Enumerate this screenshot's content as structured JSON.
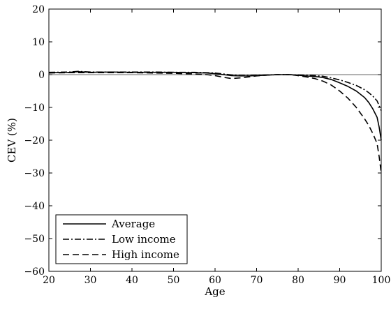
{
  "chart_data": {
    "type": "line",
    "title": "",
    "xlabel": "Age",
    "ylabel": "CEV (%)",
    "xlim": [
      20,
      100
    ],
    "ylim": [
      -60,
      20
    ],
    "xticks": [
      20,
      30,
      40,
      50,
      60,
      70,
      80,
      90,
      100
    ],
    "yticks": [
      20,
      10,
      0,
      -10,
      -20,
      -30,
      -40,
      -50,
      -60
    ],
    "reference_line_y": 0,
    "legend_position": "bottom-left",
    "series": [
      {
        "name": "Average",
        "style": "solid",
        "x": [
          20,
          25,
          27,
          30,
          35,
          40,
          45,
          50,
          55,
          58,
          60,
          62,
          64,
          66,
          68,
          70,
          72,
          75,
          78,
          80,
          82,
          84,
          85,
          86,
          88,
          90,
          92,
          94,
          96,
          97,
          98,
          99,
          99.5,
          100
        ],
        "y": [
          0.6,
          0.7,
          0.9,
          0.7,
          0.8,
          0.7,
          0.7,
          0.7,
          0.6,
          0.5,
          0.3,
          0.0,
          -0.3,
          -0.4,
          -0.4,
          -0.3,
          -0.2,
          0.0,
          0.0,
          -0.2,
          -0.4,
          -0.6,
          -0.7,
          -0.9,
          -1.5,
          -2.5,
          -3.6,
          -5.0,
          -7.0,
          -8.5,
          -10.5,
          -13.0,
          -16.0,
          -20.0
        ]
      },
      {
        "name": "Low income",
        "style": "dashdot",
        "x": [
          20,
          25,
          27,
          30,
          35,
          40,
          45,
          50,
          55,
          58,
          60,
          62,
          64,
          66,
          68,
          70,
          72,
          75,
          78,
          80,
          82,
          84,
          86,
          88,
          90,
          92,
          94,
          96,
          97,
          98,
          99,
          99.5,
          100
        ],
        "y": [
          0.7,
          0.8,
          1.0,
          0.8,
          0.8,
          0.8,
          0.8,
          0.7,
          0.7,
          0.6,
          0.5,
          0.2,
          -0.1,
          -0.3,
          -0.3,
          -0.2,
          -0.1,
          0.0,
          0.0,
          -0.1,
          -0.2,
          -0.3,
          -0.5,
          -1.0,
          -1.6,
          -2.4,
          -3.3,
          -4.6,
          -5.5,
          -6.6,
          -8.0,
          -9.5,
          -11.0
        ]
      },
      {
        "name": "High income",
        "style": "dashed",
        "x": [
          20,
          25,
          30,
          35,
          40,
          45,
          50,
          55,
          58,
          60,
          62,
          64,
          66,
          68,
          70,
          72,
          75,
          78,
          80,
          82,
          84,
          86,
          88,
          90,
          92,
          94,
          96,
          97,
          98,
          99,
          99.5,
          100
        ],
        "y": [
          0.5,
          0.6,
          0.6,
          0.6,
          0.6,
          0.5,
          0.4,
          0.2,
          0.0,
          -0.3,
          -0.8,
          -1.2,
          -1.0,
          -0.7,
          -0.4,
          -0.2,
          0.0,
          0.0,
          -0.3,
          -0.7,
          -1.2,
          -2.0,
          -3.2,
          -5.0,
          -7.2,
          -10.0,
          -13.5,
          -15.5,
          -18.0,
          -21.0,
          -25.0,
          -30.0
        ]
      }
    ]
  }
}
